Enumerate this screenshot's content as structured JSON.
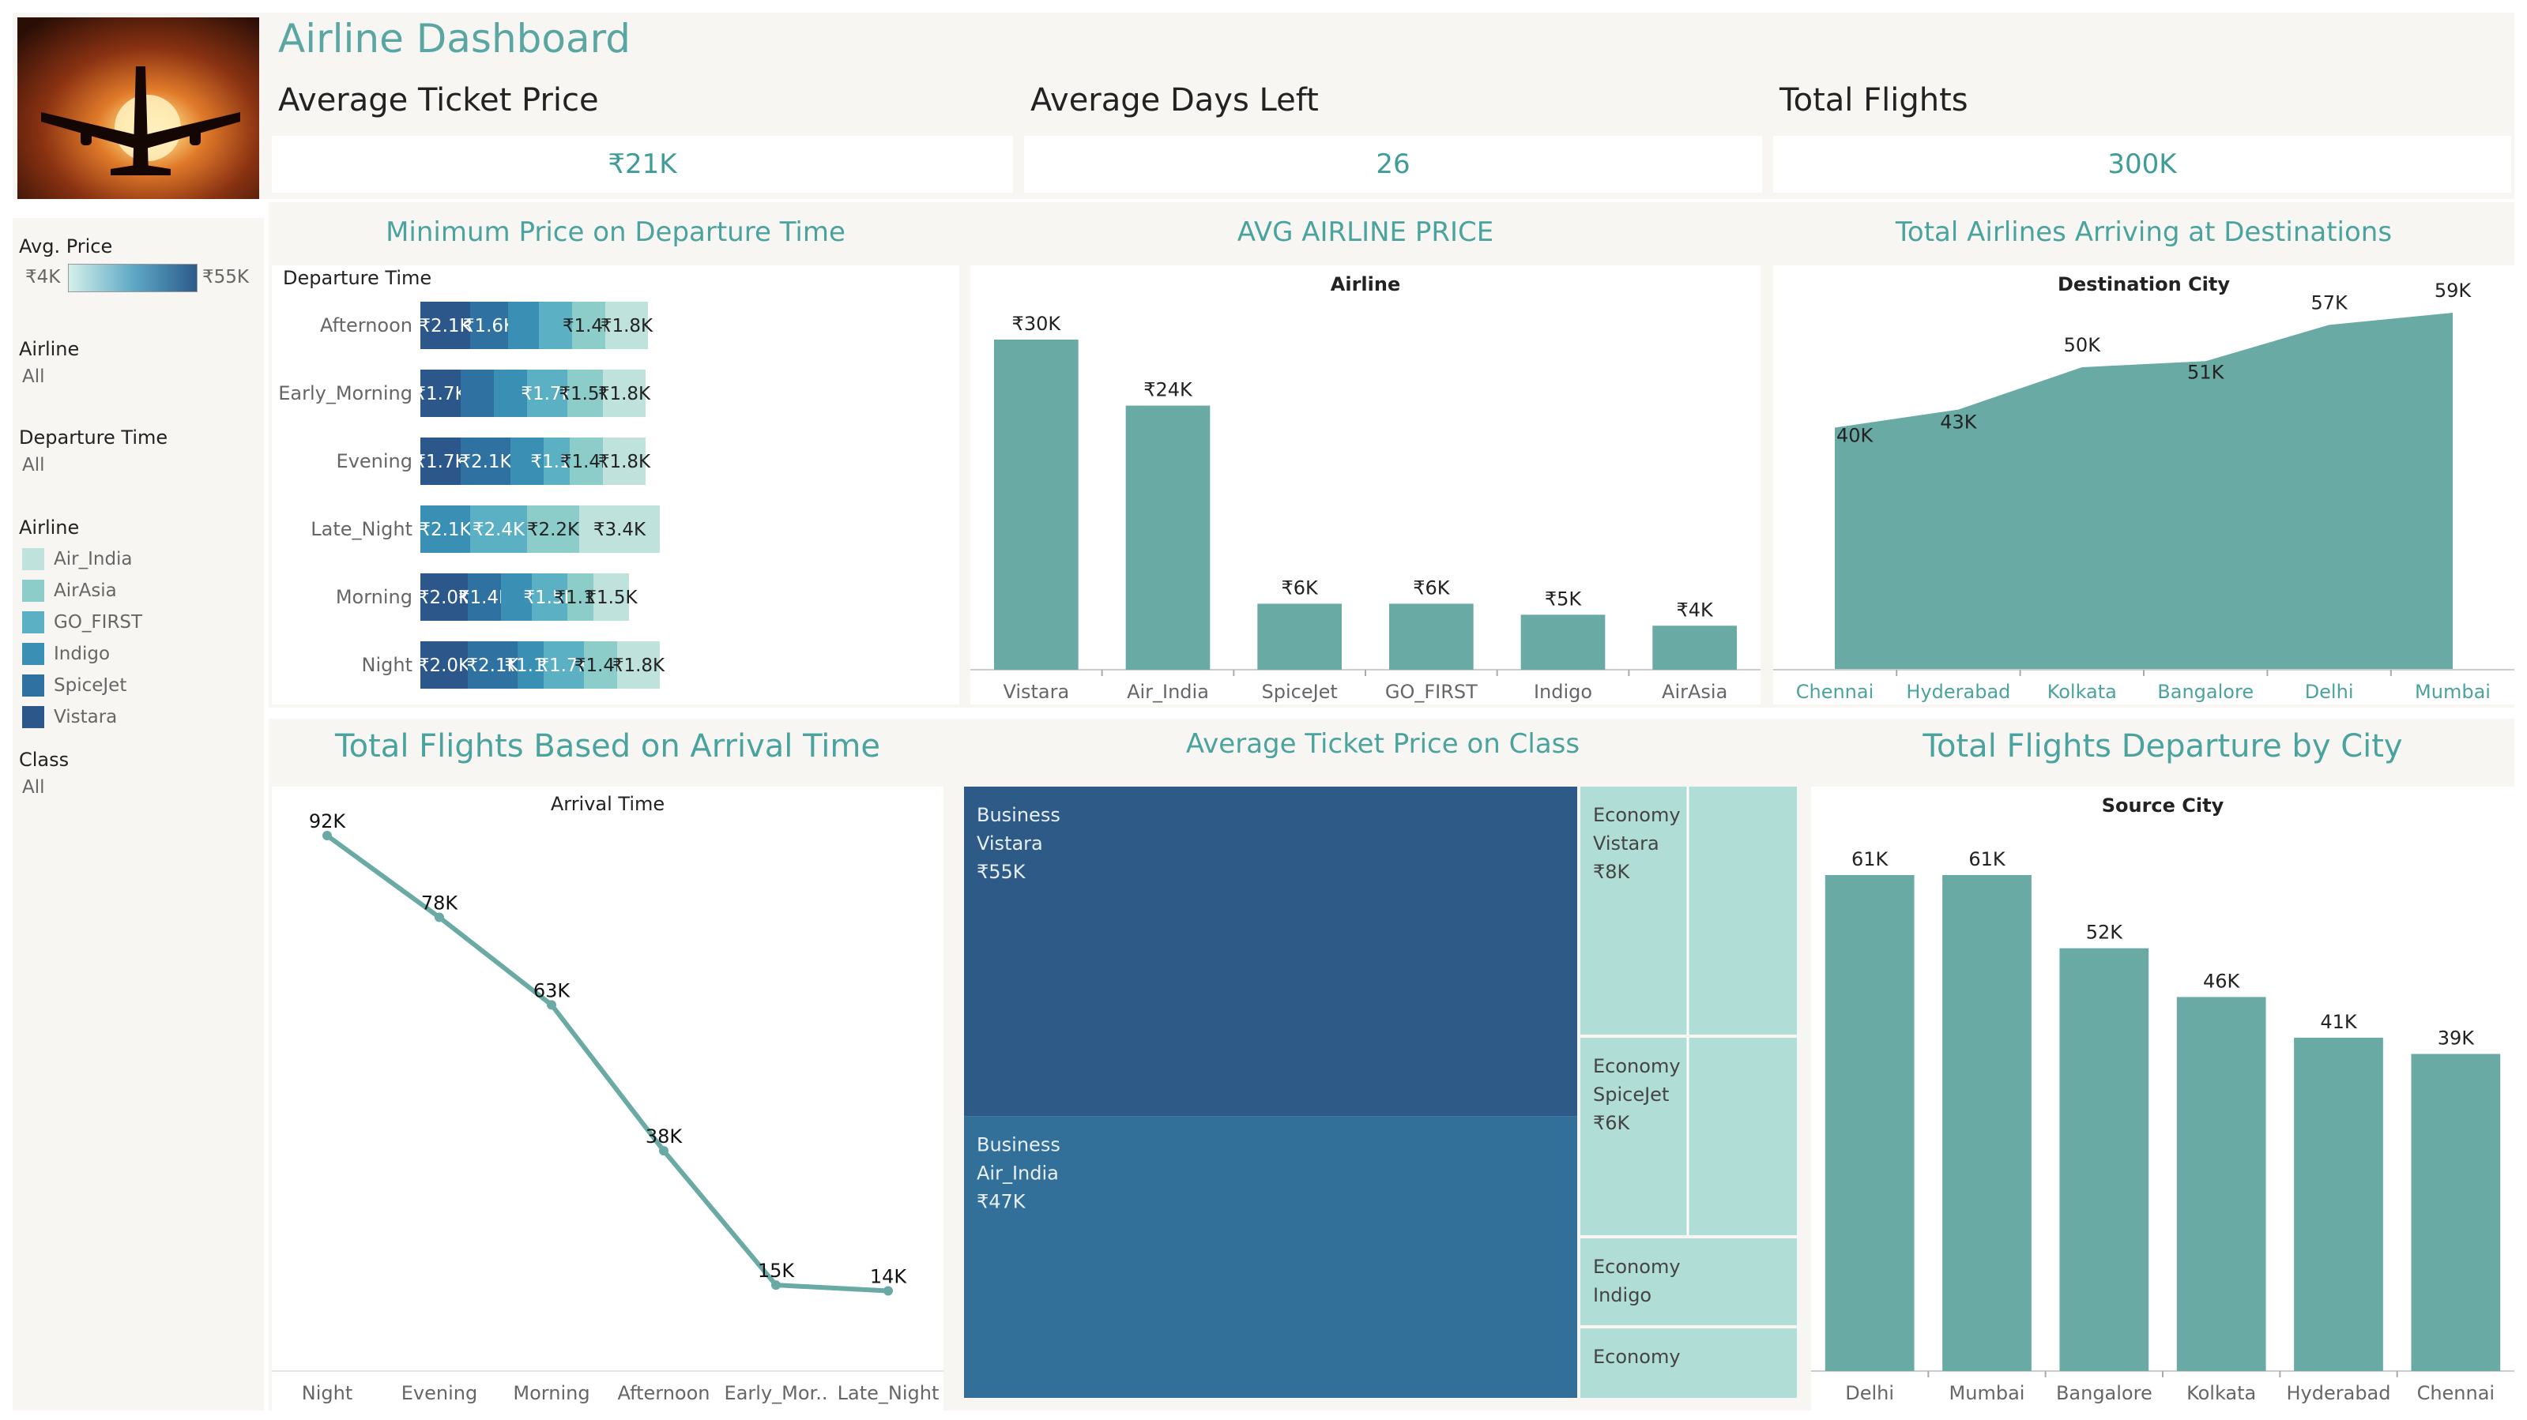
{
  "dashboard_title": "Airline Dashboard",
  "kpis": [
    {
      "label": "Average Ticket Price",
      "value": "₹21K"
    },
    {
      "label": "Average Days Left",
      "value": "26"
    },
    {
      "label": "Total Flights",
      "value": "300K"
    }
  ],
  "sidebar": {
    "avg_price_label": "Avg. Price",
    "avg_price_min": "₹4K",
    "avg_price_max": "₹55K",
    "airline_filter_label": "Airline",
    "airline_filter_value": "All",
    "departure_filter_label": "Departure Time",
    "departure_filter_value": "All",
    "airline_legend_label": "Airline",
    "airline_legend": [
      {
        "name": "Air_India",
        "color": "#bfe3dc"
      },
      {
        "name": "AirAsia",
        "color": "#8dcdc9"
      },
      {
        "name": "GO_FIRST",
        "color": "#5cb0c3"
      },
      {
        "name": "Indigo",
        "color": "#3a90b4"
      },
      {
        "name": "SpiceJet",
        "color": "#2f71a0"
      },
      {
        "name": "Vistara",
        "color": "#2b578a"
      }
    ],
    "class_filter_label": "Class",
    "class_filter_value": "All"
  },
  "chart_data": [
    {
      "type": "bar",
      "title": "Minimum Price on Departure Time",
      "ylabel": "Departure Time",
      "stacked": true,
      "orientation": "horizontal",
      "categories": [
        "Afternoon",
        "Early_Morning",
        "Evening",
        "Late_Night",
        "Morning",
        "Night"
      ],
      "rows": [
        {
          "category": "Afternoon",
          "segments": [
            {
              "airline": "Vistara",
              "value": 2.1,
              "label": "₹2.1K"
            },
            {
              "airline": "SpiceJet",
              "value": 1.6,
              "label": "₹1.6K"
            },
            {
              "airline": "Indigo",
              "value": 1.3,
              "label": ""
            },
            {
              "airline": "GO_FIRST",
              "value": 1.4,
              "label": ""
            },
            {
              "airline": "AirAsia",
              "value": 1.4,
              "label": "₹1.4K"
            },
            {
              "airline": "Air_India",
              "value": 1.8,
              "label": "₹1.8K"
            }
          ]
        },
        {
          "category": "Early_Morning",
          "segments": [
            {
              "airline": "Vistara",
              "value": 1.7,
              "label": "₹1.7K"
            },
            {
              "airline": "SpiceJet",
              "value": 1.4,
              "label": ""
            },
            {
              "airline": "Indigo",
              "value": 1.4,
              "label": ""
            },
            {
              "airline": "GO_FIRST",
              "value": 1.7,
              "label": "₹1.7K"
            },
            {
              "airline": "AirAsia",
              "value": 1.5,
              "label": "₹1.5K"
            },
            {
              "airline": "Air_India",
              "value": 1.8,
              "label": "₹1.8K"
            }
          ]
        },
        {
          "category": "Evening",
          "segments": [
            {
              "airline": "Vistara",
              "value": 1.7,
              "label": "₹1.7K"
            },
            {
              "airline": "SpiceJet",
              "value": 2.1,
              "label": "₹2.1K"
            },
            {
              "airline": "Indigo",
              "value": 1.4,
              "label": ""
            },
            {
              "airline": "GO_FIRST",
              "value": 1.1,
              "label": "₹1.1K"
            },
            {
              "airline": "AirAsia",
              "value": 1.4,
              "label": "₹1.4K"
            },
            {
              "airline": "Air_India",
              "value": 1.8,
              "label": "₹1.8K"
            }
          ]
        },
        {
          "category": "Late_Night",
          "segments": [
            {
              "airline": "Indigo",
              "value": 2.1,
              "label": "₹2.1K"
            },
            {
              "airline": "GO_FIRST",
              "value": 2.4,
              "label": "₹2.4K"
            },
            {
              "airline": "AirAsia",
              "value": 2.2,
              "label": "₹2.2K"
            },
            {
              "airline": "Air_India",
              "value": 3.4,
              "label": "₹3.4K"
            }
          ]
        },
        {
          "category": "Morning",
          "segments": [
            {
              "airline": "Vistara",
              "value": 2.0,
              "label": "₹2.0K"
            },
            {
              "airline": "SpiceJet",
              "value": 1.4,
              "label": "₹1.4K"
            },
            {
              "airline": "Indigo",
              "value": 1.3,
              "label": ""
            },
            {
              "airline": "GO_FIRST",
              "value": 1.5,
              "label": "₹1.5K"
            },
            {
              "airline": "AirAsia",
              "value": 1.1,
              "label": "₹1.1K"
            },
            {
              "airline": "Air_India",
              "value": 1.5,
              "label": "₹1.5K"
            }
          ]
        },
        {
          "category": "Night",
          "segments": [
            {
              "airline": "Vistara",
              "value": 2.0,
              "label": "₹2.0K"
            },
            {
              "airline": "SpiceJet",
              "value": 2.1,
              "label": "₹2.1K"
            },
            {
              "airline": "Indigo",
              "value": 1.1,
              "label": "₹1.1K"
            },
            {
              "airline": "GO_FIRST",
              "value": 1.7,
              "label": "₹1.7K"
            },
            {
              "airline": "AirAsia",
              "value": 1.4,
              "label": "₹1.4K"
            },
            {
              "airline": "Air_India",
              "value": 1.8,
              "label": "₹1.8K"
            }
          ]
        }
      ]
    },
    {
      "type": "bar",
      "title": "AVG AIRLINE PRICE",
      "xlabel": "Airline",
      "categories": [
        "Vistara",
        "Air_India",
        "SpiceJet",
        "GO_FIRST",
        "Indigo",
        "AirAsia"
      ],
      "values": [
        30,
        24,
        6,
        6,
        5,
        4
      ],
      "labels": [
        "₹30K",
        "₹24K",
        "₹6K",
        "₹6K",
        "₹5K",
        "₹4K"
      ],
      "ylim": [
        0,
        30
      ],
      "color": "#6aaaa5"
    },
    {
      "type": "area",
      "title": "Total Airlines Arriving at Destinations",
      "xlabel": "Destination City",
      "categories": [
        "Chennai",
        "Hyderabad",
        "Kolkata",
        "Bangalore",
        "Delhi",
        "Mumbai"
      ],
      "values": [
        40,
        43,
        50,
        51,
        57,
        59
      ],
      "labels": [
        "40K",
        "43K",
        "50K",
        "51K",
        "57K",
        "59K"
      ],
      "ylim": [
        0,
        59
      ],
      "color": "#6aaaa5"
    },
    {
      "type": "line",
      "title": "Total Flights Based on Arrival Time",
      "xlabel": "Arrival Time",
      "categories": [
        "Night",
        "Evening",
        "Morning",
        "Afternoon",
        "Early_Mor..",
        "Late_Night"
      ],
      "values": [
        92,
        78,
        63,
        38,
        15,
        14
      ],
      "labels": [
        "92K",
        "78K",
        "63K",
        "38K",
        "15K",
        "14K"
      ],
      "ylim": [
        0,
        92
      ],
      "color": "#6aaaa5"
    },
    {
      "type": "treemap",
      "title": "Average Ticket Price on Class",
      "cells": [
        {
          "class": "Business",
          "airline": "Vistara",
          "value": 55,
          "label": "₹55K",
          "color": "#2d5a87"
        },
        {
          "class": "Business",
          "airline": "Air_India",
          "value": 47,
          "label": "₹47K",
          "color": "#326f99"
        },
        {
          "class": "Economy",
          "airline": "Vistara",
          "value": 8,
          "label": "₹8K",
          "color": "#b1ddd7"
        },
        {
          "class": "Economy",
          "airline": "SpiceJet",
          "value": 6,
          "label": "₹6K",
          "color": "#b1ddd7"
        },
        {
          "class": "Economy",
          "airline": "Indigo",
          "value": null,
          "label": "",
          "color": "#b1ddd7"
        },
        {
          "class": "Economy",
          "airline": "",
          "value": null,
          "label": "",
          "color": "#b1ddd7"
        }
      ]
    },
    {
      "type": "bar",
      "title": "Total Flights Departure by City",
      "xlabel": "Source City",
      "categories": [
        "Delhi",
        "Mumbai",
        "Bangalore",
        "Kolkata",
        "Hyderabad",
        "Chennai"
      ],
      "values": [
        61,
        61,
        52,
        46,
        41,
        39
      ],
      "labels": [
        "61K",
        "61K",
        "52K",
        "46K",
        "41K",
        "39K"
      ],
      "ylim": [
        0,
        61
      ],
      "color": "#6aaaa5"
    }
  ]
}
